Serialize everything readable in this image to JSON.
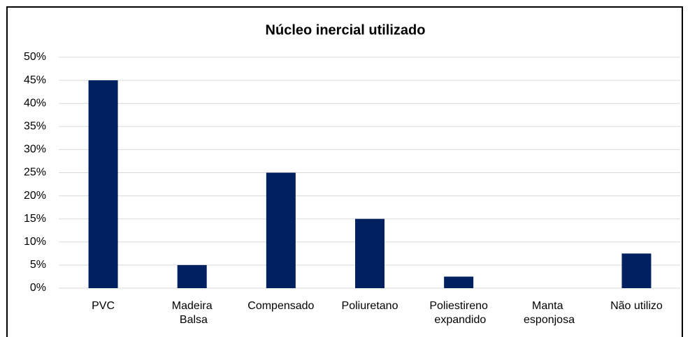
{
  "chart_data": {
    "type": "bar",
    "title": "Núcleo inercial utilizado",
    "categories": [
      "PVC",
      "Madeira Balsa",
      "Compensado",
      "Poliuretano",
      "Poliestireno expandido",
      "Manta esponjosa",
      "Não utilizo"
    ],
    "values": [
      45,
      5,
      25,
      15,
      2.5,
      0,
      7.5
    ],
    "color": "#002060",
    "ylim": [
      0,
      50
    ],
    "yticks": [
      {
        "value": 0,
        "label": "0%"
      },
      {
        "value": 5,
        "label": "5%"
      },
      {
        "value": 10,
        "label": "10%"
      },
      {
        "value": 15,
        "label": "15%"
      },
      {
        "value": 20,
        "label": "20%"
      },
      {
        "value": 25,
        "label": "25%"
      },
      {
        "value": 30,
        "label": "30%"
      },
      {
        "value": 35,
        "label": "35%"
      },
      {
        "value": 40,
        "label": "40%"
      },
      {
        "value": 45,
        "label": "45%"
      },
      {
        "value": 50,
        "label": "50%"
      }
    ],
    "grid": true
  }
}
